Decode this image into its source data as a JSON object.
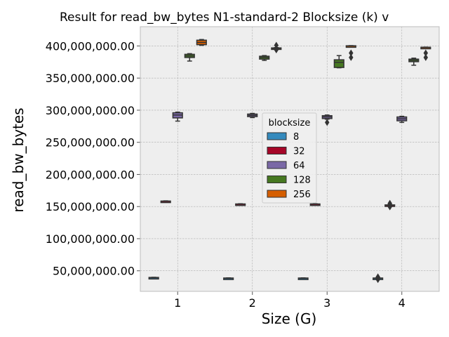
{
  "chart_data": {
    "type": "box",
    "title": "Result for read_bw_bytes N1-standard-2 Blocksize (k) v",
    "xlabel": "Size (G)",
    "ylabel": "read_bw_bytes",
    "categories": [
      "1",
      "2",
      "3",
      "4"
    ],
    "ylim": [
      18000000,
      430000000
    ],
    "yticks": [
      50000000,
      100000000,
      150000000,
      200000000,
      250000000,
      300000000,
      350000000,
      400000000
    ],
    "ytick_labels": [
      "50,000,000.00",
      "100,000,000.00",
      "150,000,000.00",
      "200,000,000.00",
      "250,000,000.00",
      "300,000,000.00",
      "350,000,000.00",
      "400,000,000.00"
    ],
    "grid": true,
    "legend": {
      "title": "blocksize",
      "placement": "center",
      "entries": [
        "8",
        "32",
        "64",
        "128",
        "256"
      ]
    },
    "colors": {
      "8": "#348abd",
      "32": "#a60628",
      "64": "#7a68a6",
      "128": "#467821",
      "256": "#d55e00",
      "background": "#eeeeee",
      "grid": "#b0b0b0",
      "line": "#333333"
    },
    "series": [
      {
        "name": "8",
        "boxes": [
          {
            "q1": 39000000,
            "median": 39300000,
            "q3": 39700000,
            "wlow": 38900000,
            "whigh": 39900000,
            "outliers": []
          },
          {
            "q1": 38200000,
            "median": 38500000,
            "q3": 38800000,
            "wlow": 38000000,
            "whigh": 39000000,
            "outliers": []
          },
          {
            "q1": 38200000,
            "median": 38500000,
            "q3": 38800000,
            "wlow": 38000000,
            "whigh": 39000000,
            "outliers": []
          },
          {
            "q1": 38000000,
            "median": 38400000,
            "q3": 38800000,
            "wlow": 37500000,
            "whigh": 39200000,
            "outliers": [
              36500000,
              40500000
            ]
          }
        ]
      },
      {
        "name": "32",
        "boxes": [
          {
            "q1": 157800000,
            "median": 158200000,
            "q3": 158600000,
            "wlow": 157500000,
            "whigh": 158900000,
            "outliers": []
          },
          {
            "q1": 153300000,
            "median": 153700000,
            "q3": 154100000,
            "wlow": 153000000,
            "whigh": 154400000,
            "outliers": []
          },
          {
            "q1": 153300000,
            "median": 153700000,
            "q3": 154100000,
            "wlow": 153000000,
            "whigh": 154400000,
            "outliers": []
          },
          {
            "q1": 151500000,
            "median": 152000000,
            "q3": 152600000,
            "wlow": 150800000,
            "whigh": 153200000,
            "outliers": [
              149500000,
              155000000
            ]
          }
        ]
      },
      {
        "name": "64",
        "boxes": [
          {
            "q1": 288000000,
            "median": 292500000,
            "q3": 296000000,
            "wlow": 283000000,
            "whigh": 297000000,
            "outliers": []
          },
          {
            "q1": 290000000,
            "median": 292000000,
            "q3": 294000000,
            "wlow": 288500000,
            "whigh": 295000000,
            "outliers": []
          },
          {
            "q1": 287000000,
            "median": 289500000,
            "q3": 291500000,
            "wlow": 286000000,
            "whigh": 292500000,
            "outliers": [
              281000000
            ]
          },
          {
            "q1": 283500000,
            "median": 286500000,
            "q3": 289500000,
            "wlow": 281000000,
            "whigh": 290500000,
            "outliers": []
          }
        ]
      },
      {
        "name": "128",
        "boxes": [
          {
            "q1": 382000000,
            "median": 384500000,
            "q3": 387000000,
            "wlow": 376500000,
            "whigh": 388000000,
            "outliers": []
          },
          {
            "q1": 379500000,
            "median": 382000000,
            "q3": 384000000,
            "wlow": 377500000,
            "whigh": 385000000,
            "outliers": []
          },
          {
            "q1": 366500000,
            "median": 374500000,
            "q3": 378500000,
            "wlow": 366000000,
            "whigh": 385000000,
            "outliers": []
          },
          {
            "q1": 375500000,
            "median": 377500000,
            "q3": 379500000,
            "wlow": 370000000,
            "whigh": 381000000,
            "outliers": []
          }
        ]
      },
      {
        "name": "256",
        "boxes": [
          {
            "q1": 402000000,
            "median": 405500000,
            "q3": 409000000,
            "wlow": 401000000,
            "whigh": 410000000,
            "outliers": []
          },
          {
            "q1": 395000000,
            "median": 396000000,
            "q3": 397000000,
            "wlow": 394500000,
            "whigh": 397500000,
            "outliers": [
              394000000,
              401000000
            ]
          },
          {
            "q1": 399700000,
            "median": 400000000,
            "q3": 400300000,
            "wlow": 399500000,
            "whigh": 400500000,
            "outliers": [
              382000000,
              389000000
            ]
          },
          {
            "q1": 397200000,
            "median": 397600000,
            "q3": 398000000,
            "wlow": 397000000,
            "whigh": 398200000,
            "outliers": [
              382000000,
              389000000
            ]
          }
        ]
      }
    ]
  }
}
